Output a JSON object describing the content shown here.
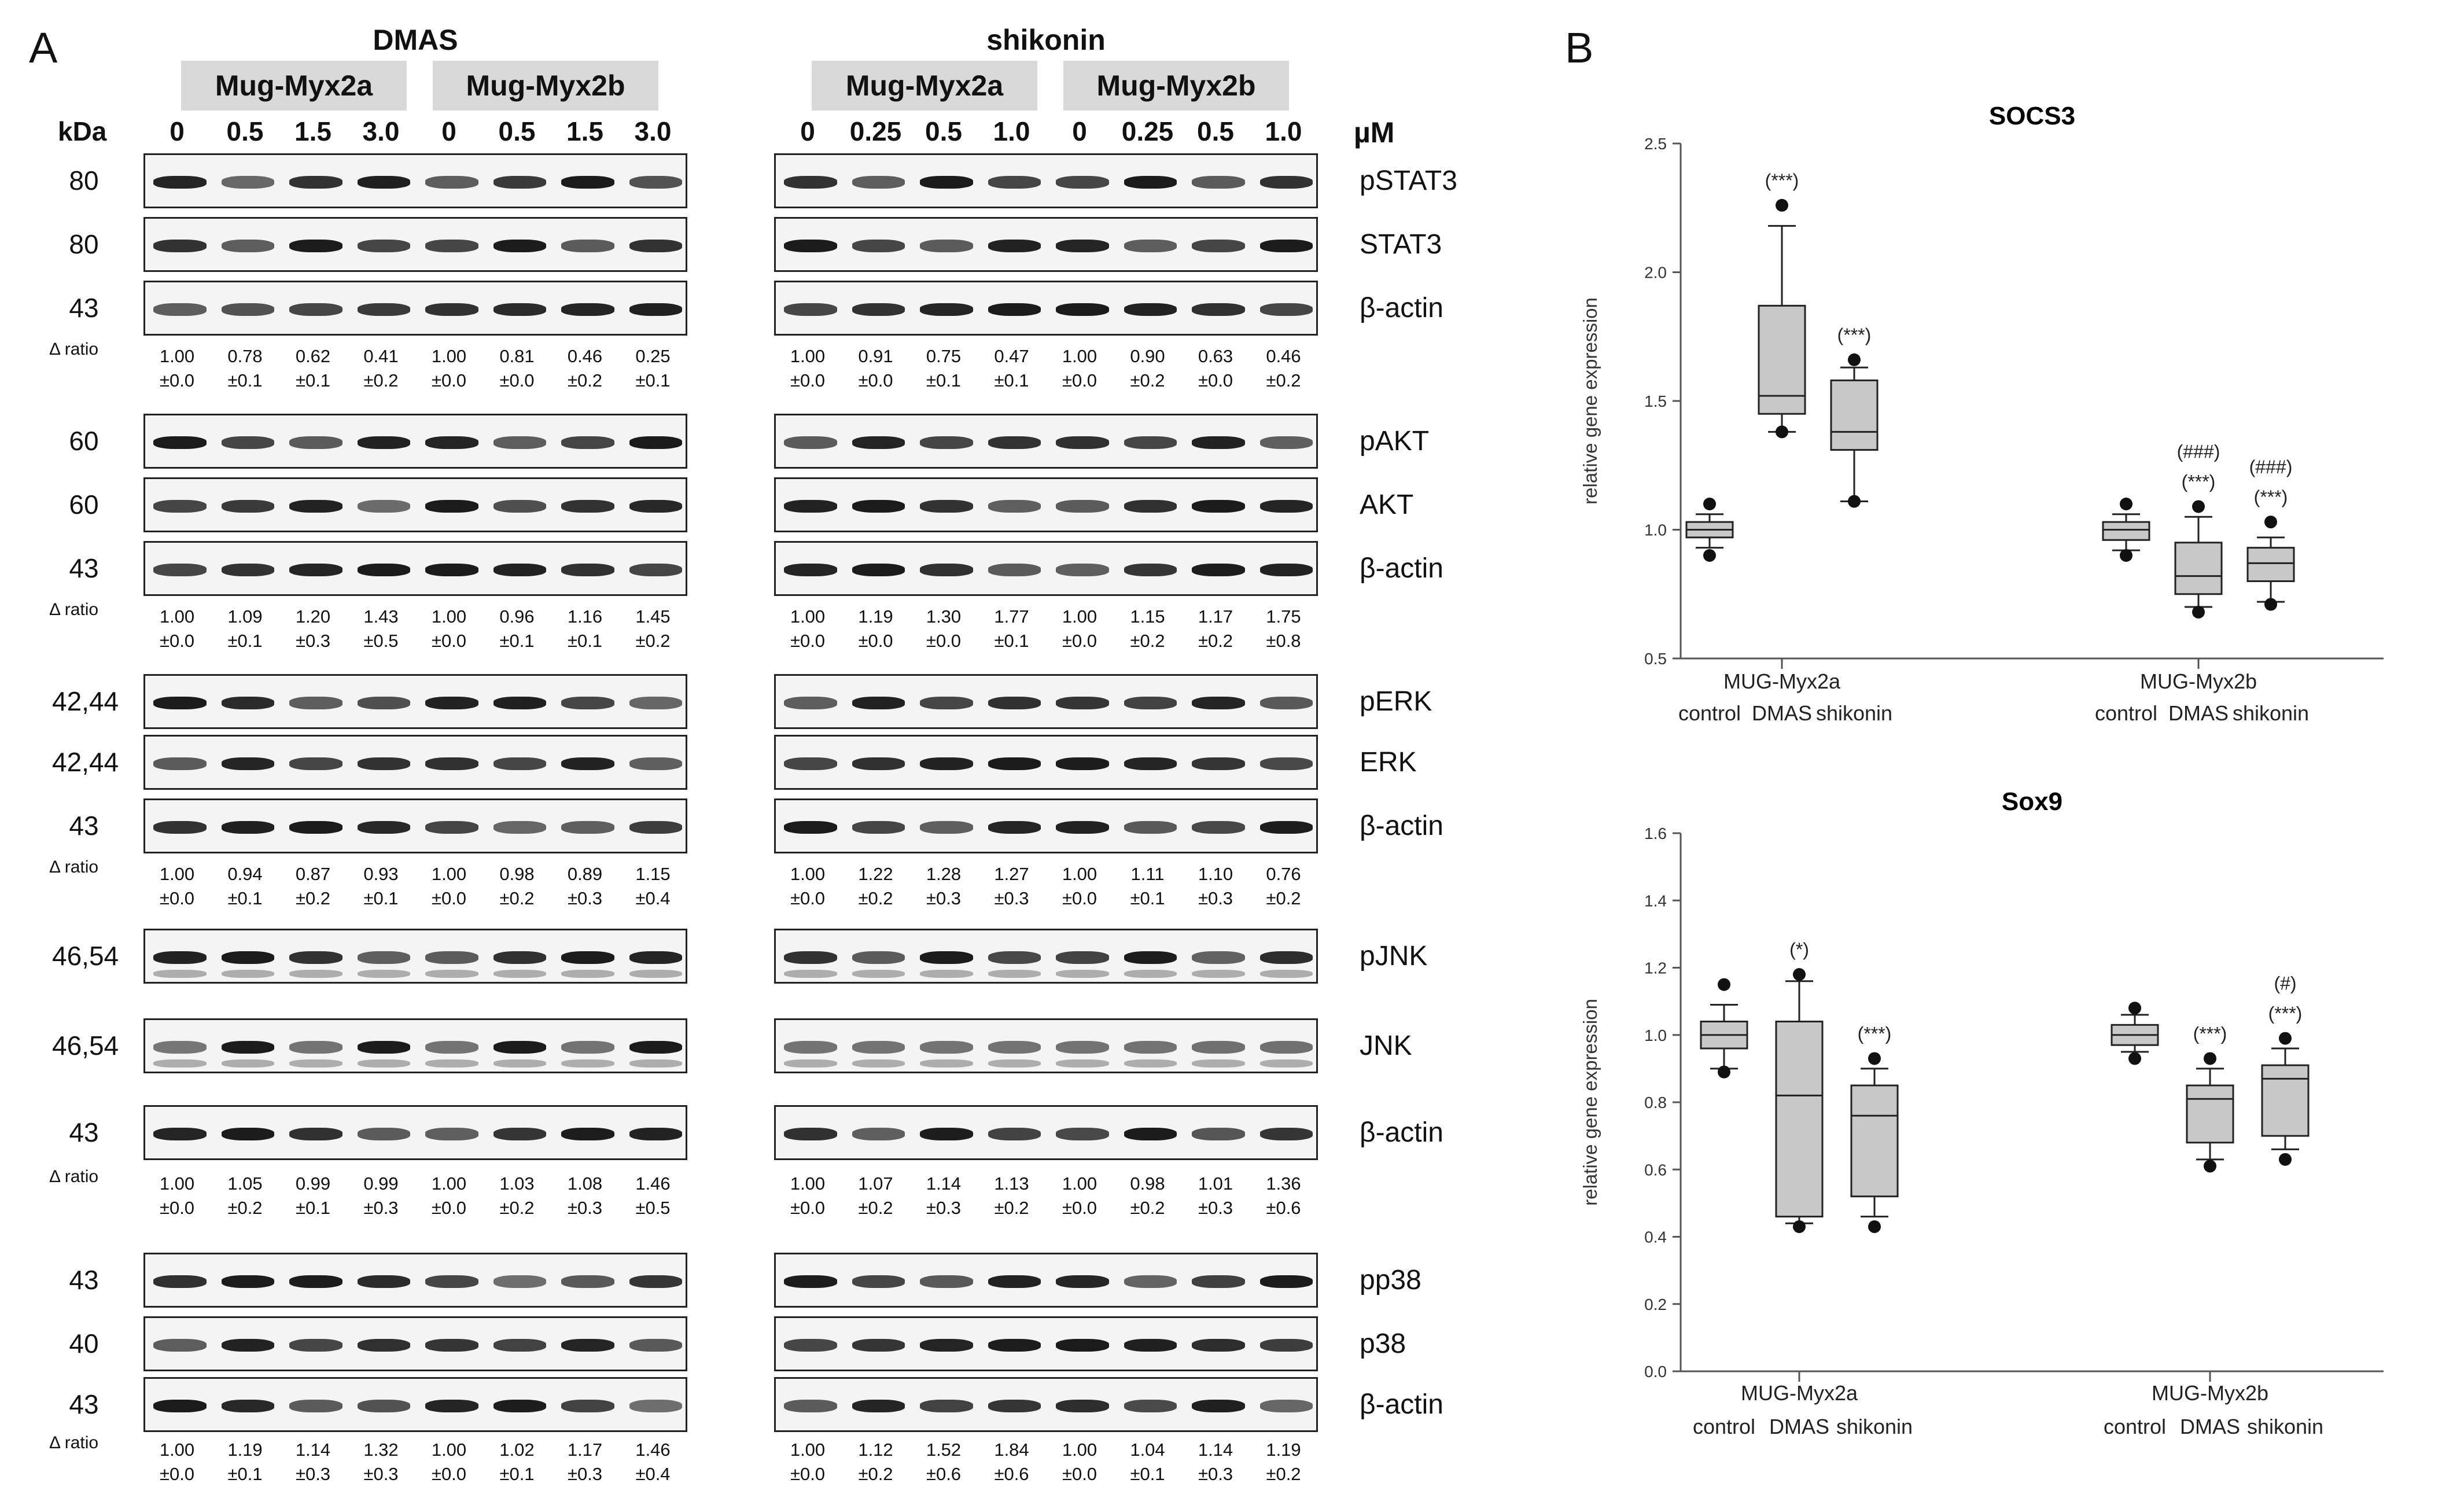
{
  "panel_a_letter": "A",
  "panel_b_letter": "B",
  "kda_header": "kDa",
  "um_header": "µM",
  "ratio_label": "Δ ratio",
  "treatments": {
    "dmas": {
      "title": "DMAS",
      "cell1": "Mug-Myx2a",
      "cell2": "Mug-Myx2b",
      "concs": [
        "0",
        "0.5",
        "1.5",
        "3.0",
        "0",
        "0.5",
        "1.5",
        "3.0"
      ]
    },
    "shikonin": {
      "title": "shikonin",
      "cell1": "Mug-Myx2a",
      "cell2": "Mug-Myx2b",
      "concs": [
        "0",
        "0.25",
        "0.5",
        "1.0",
        "0",
        "0.25",
        "0.5",
        "1.0"
      ]
    }
  },
  "blots": [
    {
      "kda": "80",
      "protein": "pSTAT3"
    },
    {
      "kda": "80",
      "protein": "STAT3"
    },
    {
      "kda": "43",
      "protein": "β-actin"
    },
    {
      "kda": "60",
      "protein": "pAKT"
    },
    {
      "kda": "60",
      "protein": "AKT"
    },
    {
      "kda": "43",
      "protein": "β-actin"
    },
    {
      "kda": "42,44",
      "protein": "pERK"
    },
    {
      "kda": "42,44",
      "protein": "ERK"
    },
    {
      "kda": "43",
      "protein": "β-actin"
    },
    {
      "kda": "46,54",
      "protein": "pJNK"
    },
    {
      "kda": "46,54",
      "protein": "JNK"
    },
    {
      "kda": "43",
      "protein": "β-actin"
    },
    {
      "kda": "43",
      "protein": "pp38"
    },
    {
      "kda": "40",
      "protein": "p38"
    },
    {
      "kda": "43",
      "protein": "β-actin"
    }
  ],
  "ratios": [
    {
      "dmas": {
        "mean": [
          "1.00",
          "0.78",
          "0.62",
          "0.41",
          "1.00",
          "0.81",
          "0.46",
          "0.25"
        ],
        "sd": [
          "±0.0",
          "±0.1",
          "±0.1",
          "±0.2",
          "±0.0",
          "±0.0",
          "±0.2",
          "±0.1"
        ]
      },
      "shikonin": {
        "mean": [
          "1.00",
          "0.91",
          "0.75",
          "0.47",
          "1.00",
          "0.90",
          "0.63",
          "0.46"
        ],
        "sd": [
          "±0.0",
          "±0.0",
          "±0.1",
          "±0.1",
          "±0.0",
          "±0.2",
          "±0.0",
          "±0.2"
        ]
      }
    },
    {
      "dmas": {
        "mean": [
          "1.00",
          "1.09",
          "1.20",
          "1.43",
          "1.00",
          "0.96",
          "1.16",
          "1.45"
        ],
        "sd": [
          "±0.0",
          "±0.1",
          "±0.3",
          "±0.5",
          "±0.0",
          "±0.1",
          "±0.1",
          "±0.2"
        ]
      },
      "shikonin": {
        "mean": [
          "1.00",
          "1.19",
          "1.30",
          "1.77",
          "1.00",
          "1.15",
          "1.17",
          "1.75"
        ],
        "sd": [
          "±0.0",
          "±0.0",
          "±0.0",
          "±0.1",
          "±0.0",
          "±0.2",
          "±0.2",
          "±0.8"
        ]
      }
    },
    {
      "dmas": {
        "mean": [
          "1.00",
          "0.94",
          "0.87",
          "0.93",
          "1.00",
          "0.98",
          "0.89",
          "1.15"
        ],
        "sd": [
          "±0.0",
          "±0.1",
          "±0.2",
          "±0.1",
          "±0.0",
          "±0.2",
          "±0.3",
          "±0.4"
        ]
      },
      "shikonin": {
        "mean": [
          "1.00",
          "1.22",
          "1.28",
          "1.27",
          "1.00",
          "1.11",
          "1.10",
          "0.76"
        ],
        "sd": [
          "±0.0",
          "±0.2",
          "±0.3",
          "±0.3",
          "±0.0",
          "±0.1",
          "±0.3",
          "±0.2"
        ]
      }
    },
    {
      "dmas": {
        "mean": [
          "1.00",
          "1.05",
          "0.99",
          "0.99",
          "1.00",
          "1.03",
          "1.08",
          "1.46"
        ],
        "sd": [
          "±0.0",
          "±0.2",
          "±0.1",
          "±0.3",
          "±0.0",
          "±0.2",
          "±0.3",
          "±0.5"
        ]
      },
      "shikonin": {
        "mean": [
          "1.00",
          "1.07",
          "1.14",
          "1.13",
          "1.00",
          "0.98",
          "1.01",
          "1.36"
        ],
        "sd": [
          "±0.0",
          "±0.2",
          "±0.3",
          "±0.2",
          "±0.0",
          "±0.2",
          "±0.3",
          "±0.6"
        ]
      }
    },
    {
      "dmas": {
        "mean": [
          "1.00",
          "1.19",
          "1.14",
          "1.32",
          "1.00",
          "1.02",
          "1.17",
          "1.46"
        ],
        "sd": [
          "±0.0",
          "±0.1",
          "±0.3",
          "±0.3",
          "±0.0",
          "±0.1",
          "±0.3",
          "±0.4"
        ]
      },
      "shikonin": {
        "mean": [
          "1.00",
          "1.12",
          "1.52",
          "1.84",
          "1.00",
          "1.04",
          "1.14",
          "1.19"
        ],
        "sd": [
          "±0.0",
          "±0.2",
          "±0.6",
          "±0.6",
          "±0.0",
          "±0.1",
          "±0.3",
          "±0.2"
        ]
      }
    }
  ],
  "chart_data": [
    {
      "type": "box",
      "title": "SOCS3",
      "ylabel": "relative gene expression",
      "xlabel": "",
      "ylim": [
        0.5,
        2.5
      ],
      "yticks": [
        "0.5",
        "1.0",
        "1.5",
        "2.0",
        "2.5"
      ],
      "groups": [
        {
          "name": "MUG-Myx2a",
          "boxes": [
            {
              "label": "control",
              "whisker_low": 0.93,
              "q1": 0.97,
              "median": 1.0,
              "q3": 1.03,
              "whisker_high": 1.06,
              "outliers": [
                0.9,
                1.1
              ],
              "annotations": []
            },
            {
              "label": "DMAS",
              "whisker_low": 1.38,
              "q1": 1.45,
              "median": 1.52,
              "q3": 1.87,
              "whisker_high": 2.18,
              "outliers": [
                1.38,
                2.26
              ],
              "annotations": [
                "(***)"
              ]
            },
            {
              "label": "shikonin",
              "whisker_low": 1.11,
              "q1": 1.31,
              "median": 1.38,
              "q3": 1.58,
              "whisker_high": 1.63,
              "outliers": [
                1.11,
                1.66
              ],
              "annotations": [
                "(***)"
              ]
            }
          ]
        },
        {
          "name": "MUG-Myx2b",
          "boxes": [
            {
              "label": "control",
              "whisker_low": 0.92,
              "q1": 0.96,
              "median": 1.0,
              "q3": 1.03,
              "whisker_high": 1.06,
              "outliers": [
                0.9,
                1.1
              ],
              "annotations": []
            },
            {
              "label": "DMAS",
              "whisker_low": 0.7,
              "q1": 0.75,
              "median": 0.82,
              "q3": 0.95,
              "whisker_high": 1.05,
              "outliers": [
                0.68,
                1.09
              ],
              "annotations": [
                "(***)",
                "(###)"
              ]
            },
            {
              "label": "shikonin",
              "whisker_low": 0.72,
              "q1": 0.8,
              "median": 0.87,
              "q3": 0.93,
              "whisker_high": 0.97,
              "outliers": [
                0.71,
                1.03
              ],
              "annotations": [
                "(***)",
                "(###)"
              ]
            }
          ]
        }
      ]
    },
    {
      "type": "box",
      "title": "Sox9",
      "ylabel": "relative gene expression",
      "xlabel": "",
      "ylim": [
        0.0,
        1.6
      ],
      "yticks": [
        "0.0",
        "0.2",
        "0.4",
        "0.6",
        "0.8",
        "1.0",
        "1.2",
        "1.4",
        "1.6"
      ],
      "groups": [
        {
          "name": "MUG-Myx2a",
          "boxes": [
            {
              "label": "control",
              "whisker_low": 0.9,
              "q1": 0.96,
              "median": 1.0,
              "q3": 1.04,
              "whisker_high": 1.09,
              "outliers": [
                0.89,
                1.15
              ],
              "annotations": []
            },
            {
              "label": "DMAS",
              "whisker_low": 0.44,
              "q1": 0.46,
              "median": 0.82,
              "q3": 1.04,
              "whisker_high": 1.16,
              "outliers": [
                0.43,
                1.18
              ],
              "annotations": [
                "(*)"
              ]
            },
            {
              "label": "shikonin",
              "whisker_low": 0.46,
              "q1": 0.52,
              "median": 0.76,
              "q3": 0.85,
              "whisker_high": 0.9,
              "outliers": [
                0.43,
                0.93
              ],
              "annotations": [
                "(***)"
              ]
            }
          ]
        },
        {
          "name": "MUG-Myx2b",
          "boxes": [
            {
              "label": "control",
              "whisker_low": 0.95,
              "q1": 0.97,
              "median": 1.0,
              "q3": 1.03,
              "whisker_high": 1.06,
              "outliers": [
                0.93,
                1.08
              ],
              "annotations": []
            },
            {
              "label": "DMAS",
              "whisker_low": 0.63,
              "q1": 0.68,
              "median": 0.81,
              "q3": 0.85,
              "whisker_high": 0.9,
              "outliers": [
                0.61,
                0.93
              ],
              "annotations": [
                "(***)"
              ]
            },
            {
              "label": "shikonin",
              "whisker_low": 0.66,
              "q1": 0.7,
              "median": 0.87,
              "q3": 0.91,
              "whisker_high": 0.96,
              "outliers": [
                0.63,
                0.99
              ],
              "annotations": [
                "(***)",
                "(#)"
              ]
            }
          ]
        }
      ]
    }
  ]
}
